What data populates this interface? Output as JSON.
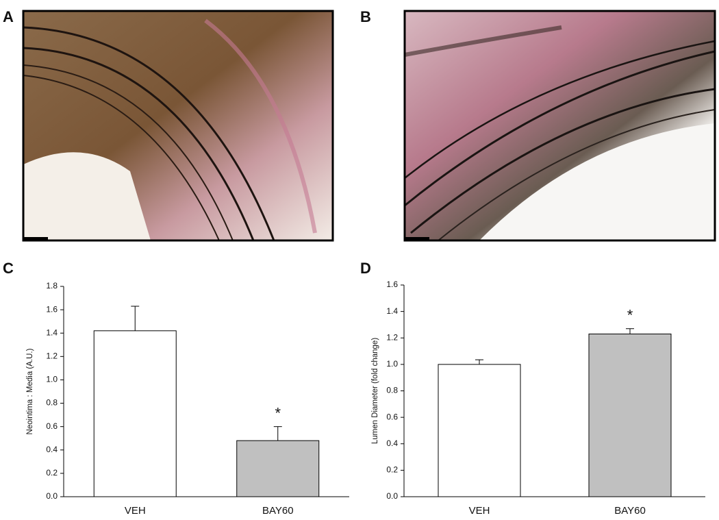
{
  "panels": [
    "A",
    "B",
    "C",
    "D"
  ],
  "chart_data": [
    {
      "type": "bar",
      "y_label": "Neointima : Media (A.U.)",
      "categories": [
        "VEH",
        "BAY60"
      ],
      "values": [
        1.42,
        0.48
      ],
      "errors": [
        0.21,
        0.12
      ],
      "colors": [
        "#ffffff",
        "#c0c0c0"
      ],
      "significance_marks": [
        null,
        "*"
      ],
      "ylim": [
        0,
        1.8
      ],
      "yticks": [
        {
          "value": 0,
          "label": "0.0"
        },
        0.2,
        0.4,
        0.6,
        0.8,
        {
          "value": 1,
          "label": "1.0"
        },
        1.2,
        1.4,
        1.6,
        1.8
      ]
    },
    {
      "type": "bar",
      "y_label": "Lumen Diameter (fold change)",
      "categories": [
        "VEH",
        "BAY60"
      ],
      "values": [
        1.0,
        1.23
      ],
      "errors": [
        0.035,
        0.04
      ],
      "colors": [
        "#ffffff",
        "#c0c0c0"
      ],
      "significance_marks": [
        null,
        "*"
      ],
      "ylim": [
        0,
        1.6
      ],
      "yticks": [
        {
          "value": 0,
          "label": "0.0"
        },
        0.2,
        0.4,
        0.6,
        0.8,
        {
          "value": 1,
          "label": "1.0"
        },
        1.2,
        1.4,
        1.6
      ]
    }
  ]
}
